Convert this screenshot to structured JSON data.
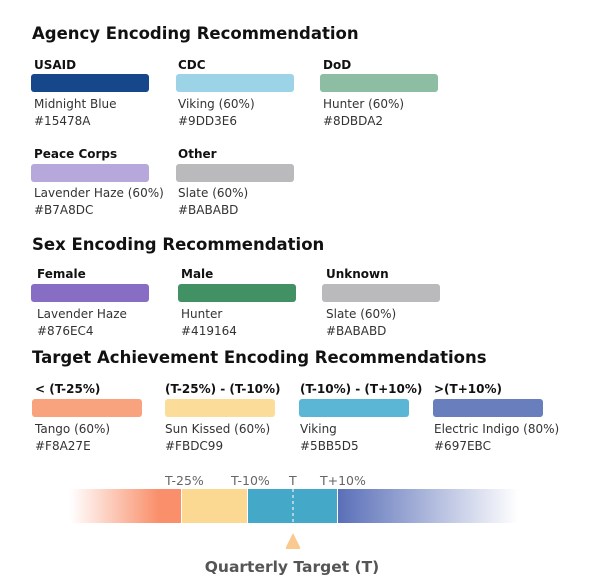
{
  "agency": {
    "title": "Agency Encoding Recommendation",
    "items": [
      {
        "label": "USAID",
        "color": "#15478A",
        "name": "Midnight Blue",
        "hex": "#15478A"
      },
      {
        "label": "CDC",
        "color": "#9DD3E6",
        "name": "Viking (60%)",
        "hex": "#9DD3E6"
      },
      {
        "label": "DoD",
        "color": "#8DBDA2",
        "name": "Hunter (60%)",
        "hex": "#8DBDA2"
      },
      {
        "label": "Peace Corps",
        "color": "#B7A8DC",
        "name": "Lavender Haze (60%)",
        "hex": "#B7A8DC"
      },
      {
        "label": "Other",
        "color": "#BABABD",
        "name": "Slate (60%)",
        "hex": "#BABABD"
      }
    ]
  },
  "sex": {
    "title": "Sex Encoding Recommendation",
    "items": [
      {
        "label": "Female",
        "color": "#876EC4",
        "name": "Lavender Haze",
        "hex": "#876EC4"
      },
      {
        "label": "Male",
        "color": "#419164",
        "name": "Hunter",
        "hex": "#419164"
      },
      {
        "label": "Unknown",
        "color": "#BABABD",
        "name": "Slate (60%)",
        "hex": "#BABABD"
      }
    ]
  },
  "target": {
    "title": "Target Achievement Encoding Recommendations",
    "items": [
      {
        "label": "< (T-25%)",
        "color": "#F8A27E",
        "name": "Tango  (60%)",
        "hex": "#F8A27E"
      },
      {
        "label": "(T-25%) - (T-10%)",
        "color": "#FBDC99",
        "name": "Sun Kissed (60%)",
        "hex": "#FBDC99"
      },
      {
        "label": "(T-10%) - (T+10%)",
        "color": "#5BB5D5",
        "name": "Viking",
        "hex": "#5BB5D5"
      },
      {
        "label": ">(T+10%)",
        "color": "#697EBC",
        "name": "Electric Indigo (80%)",
        "hex": "#697EBC"
      }
    ]
  },
  "scale": {
    "ticks": [
      "T-25%",
      "T-10%",
      "T",
      "T+10%"
    ],
    "caption": "Quarterly Target (T)",
    "colors": {
      "low": "#F98F6B",
      "low_mid": "#FCD993",
      "mid": "#44A9C9",
      "high": "#5A6FB8"
    }
  }
}
